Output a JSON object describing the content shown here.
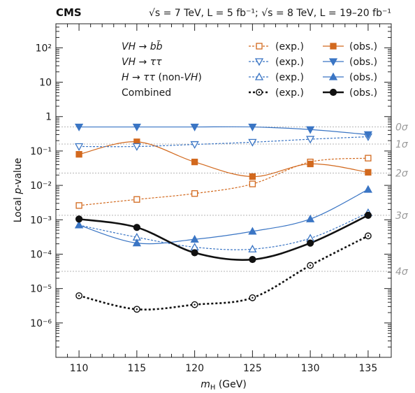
{
  "header": {
    "experiment": "CMS",
    "energy_lumi": "√s = 7 TeV, L = 5 fb⁻¹; √s = 8 TeV, L = 19–20 fb⁻¹"
  },
  "chart_data": {
    "type": "line",
    "xlabel": "mH (GeV)",
    "ylabel": "Local p-value",
    "xlim": [
      108,
      137
    ],
    "ylim": [
      1e-07,
      500
    ],
    "yscale": "log",
    "x_ticks": [
      110,
      115,
      120,
      125,
      130,
      135
    ],
    "y_ticks": [
      {
        "value": 1e-06,
        "label": "10⁻⁶"
      },
      {
        "value": 1e-05,
        "label": "10⁻⁵"
      },
      {
        "value": 0.0001,
        "label": "10⁻⁴"
      },
      {
        "value": 0.001,
        "label": "10⁻³"
      },
      {
        "value": 0.01,
        "label": "10⁻²"
      },
      {
        "value": 0.1,
        "label": "10⁻¹"
      },
      {
        "value": 1,
        "label": "1"
      },
      {
        "value": 10,
        "label": "10"
      },
      {
        "value": 100,
        "label": "10²"
      }
    ],
    "sigma_lines": [
      {
        "label": "0σ",
        "p": 0.5
      },
      {
        "label": "1σ",
        "p": 0.1587
      },
      {
        "label": "2σ",
        "p": 0.02275
      },
      {
        "label": "3σ",
        "p": 0.00135
      },
      {
        "label": "4σ",
        "p": 3.17e-05
      }
    ],
    "x": [
      110,
      115,
      120,
      125,
      130,
      135
    ],
    "series": [
      {
        "name": "VH → bb̄",
        "kind": "exp.",
        "color": "#d2691e",
        "marker": "open-square",
        "values": [
          0.0026,
          0.0039,
          0.0058,
          0.011,
          0.048,
          0.062
        ]
      },
      {
        "name": "VH → bb̄",
        "kind": "obs.",
        "color": "#d2691e",
        "marker": "filled-square",
        "values": [
          0.08,
          0.185,
          0.048,
          0.018,
          0.042,
          0.024
        ]
      },
      {
        "name": "VH → ττ",
        "kind": "exp.",
        "color": "#3a75c4",
        "marker": "open-triangle-down",
        "values": [
          0.135,
          0.135,
          0.155,
          0.18,
          0.22,
          0.26
        ]
      },
      {
        "name": "VH → ττ",
        "kind": "obs.",
        "color": "#3a75c4",
        "marker": "filled-triangle-down",
        "values": [
          0.5,
          0.5,
          0.5,
          0.5,
          0.42,
          0.3
        ]
      },
      {
        "name": "H → ττ (non-VH)",
        "kind": "exp.",
        "color": "#3a75c4",
        "marker": "open-triangle-up",
        "values": [
          0.0007,
          0.00031,
          0.00016,
          0.00014,
          0.00029,
          0.0016
        ]
      },
      {
        "name": "H → ττ (non-VH)",
        "kind": "obs.",
        "color": "#3a75c4",
        "marker": "filled-triangle-up",
        "values": [
          0.0007,
          0.00021,
          0.00027,
          0.00046,
          0.00105,
          0.0076
        ]
      },
      {
        "name": "Combined",
        "kind": "exp.",
        "color": "#111111",
        "marker": "open-circle",
        "values": [
          6.2e-06,
          2.5e-06,
          3.4e-06,
          5.4e-06,
          4.7e-05,
          0.00034
        ]
      },
      {
        "name": "Combined",
        "kind": "obs.",
        "color": "#111111",
        "marker": "filled-circle",
        "values": [
          0.00105,
          0.0006,
          0.00011,
          7e-05,
          0.00021,
          0.00135
        ]
      }
    ]
  },
  "legend": {
    "process_labels": [
      "VH → bb̄",
      "VH → ττ",
      "H → ττ (non-VH)",
      "Combined"
    ],
    "exp_label": "(exp.)",
    "obs_label": "(obs.)"
  }
}
